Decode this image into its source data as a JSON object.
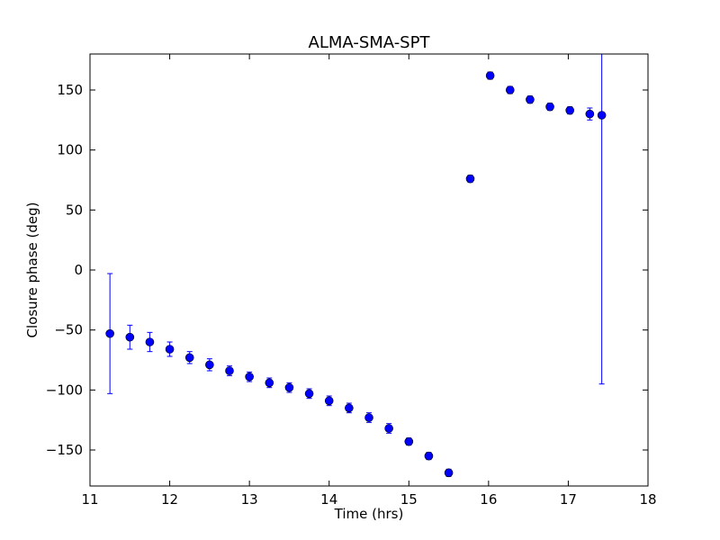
{
  "chart_data": {
    "type": "scatter",
    "title": "ALMA-SMA-SPT",
    "xlabel": "Time (hrs)",
    "ylabel": "Closure phase (deg)",
    "xlim": [
      11,
      18
    ],
    "ylim": [
      -180,
      180
    ],
    "xticks": [
      11,
      12,
      13,
      14,
      15,
      16,
      17,
      18
    ],
    "yticks": [
      -150,
      -100,
      -50,
      0,
      50,
      100,
      150
    ],
    "xtick_labels": [
      "11",
      "12",
      "13",
      "14",
      "15",
      "16",
      "17",
      "18"
    ],
    "ytick_labels": [
      "−150",
      "−100",
      "−50",
      "0",
      "50",
      "100",
      "150"
    ],
    "grid": false,
    "color": "#0000ff",
    "series": [
      {
        "x": [
          11.25,
          11.5,
          11.75,
          12.0,
          12.25,
          12.5,
          12.75,
          13.0,
          13.25,
          13.5,
          13.75,
          14.0,
          14.25,
          14.5,
          14.75,
          15.0,
          15.25,
          15.5,
          15.77,
          16.02,
          16.27,
          16.52,
          16.77,
          17.02,
          17.27,
          17.42
        ],
        "y": [
          -53,
          -56,
          -60,
          -66,
          -73,
          -79,
          -84,
          -89,
          -94,
          -98,
          -103,
          -109,
          -115,
          -123,
          -132,
          -143,
          -155,
          -169,
          76,
          162,
          150,
          142,
          136,
          133,
          130,
          129
        ],
        "yerr": [
          50,
          10,
          8,
          6,
          5,
          5,
          4,
          4,
          4,
          4,
          4,
          4,
          4,
          4,
          4,
          3,
          3,
          3,
          3,
          3,
          3,
          3,
          3,
          3,
          5,
          224
        ]
      }
    ]
  }
}
